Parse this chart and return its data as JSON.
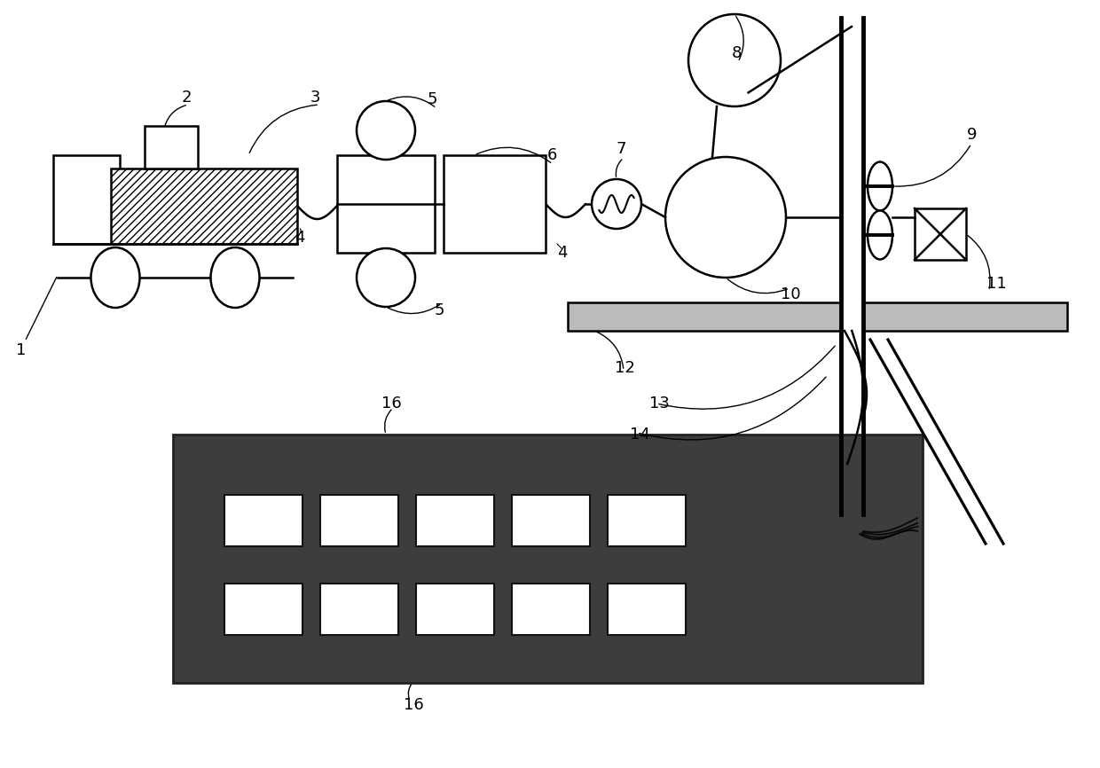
{
  "bg_color": "#ffffff",
  "line_color": "#000000",
  "fig_w": 12.4,
  "fig_h": 8.66,
  "dpi": 100
}
